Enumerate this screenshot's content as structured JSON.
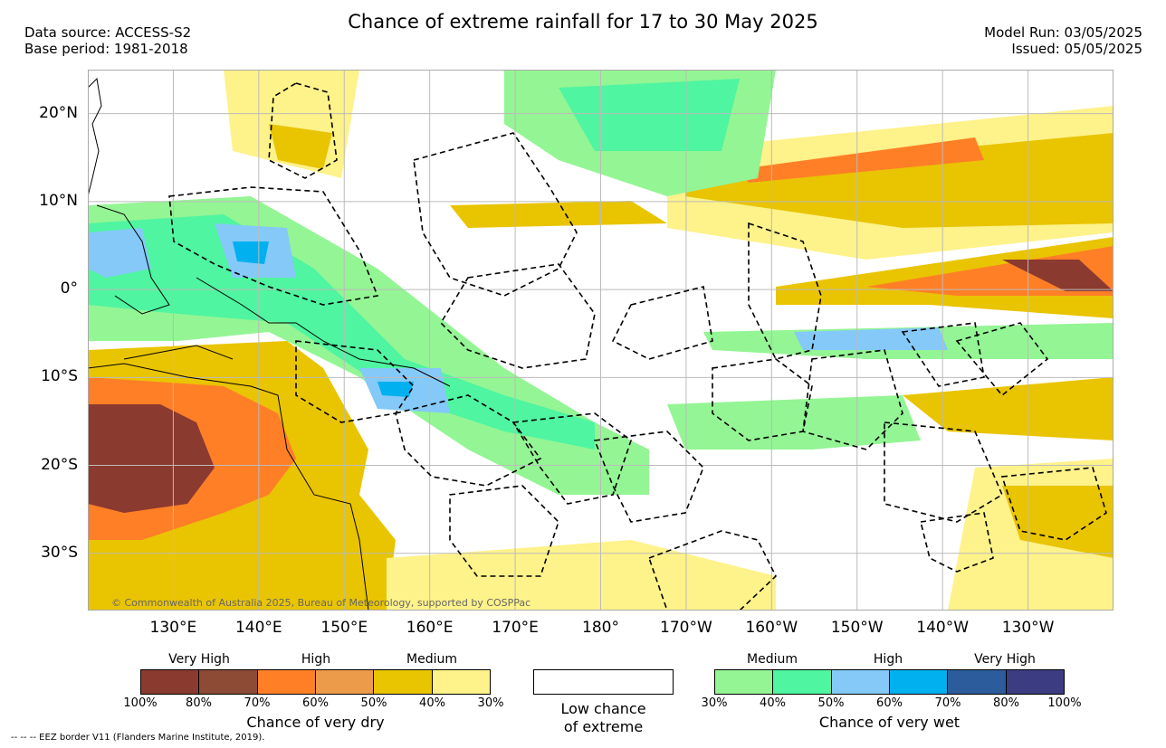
{
  "title": "Chance of extreme rainfall for 17 to 30 May 2025",
  "header_left": [
    "Data source: ACCESS-S2",
    "Base period: 1981-2018"
  ],
  "header_right": [
    "Model Run: 03/05/2025",
    "Issued: 05/05/2025"
  ],
  "lat_labels": [
    {
      "label": "20°N",
      "lat": 20
    },
    {
      "label": "10°N",
      "lat": 10
    },
    {
      "label": "0°",
      "lat": 0
    },
    {
      "label": "10°S",
      "lat": -10
    },
    {
      "label": "20°S",
      "lat": -20
    },
    {
      "label": "30°S",
      "lat": -30
    }
  ],
  "lon_labels": [
    {
      "label": "130°E",
      "lon": 130
    },
    {
      "label": "140°E",
      "lon": 140
    },
    {
      "label": "150°E",
      "lon": 150
    },
    {
      "label": "160°E",
      "lon": 160
    },
    {
      "label": "170°E",
      "lon": 170
    },
    {
      "label": "180°",
      "lon": 180
    },
    {
      "label": "170°W",
      "lon": 190
    },
    {
      "label": "160°W",
      "lon": 200
    },
    {
      "label": "150°W",
      "lon": 210
    },
    {
      "label": "140°W",
      "lon": 220
    },
    {
      "label": "130°W",
      "lon": 230
    }
  ],
  "map_extent": {
    "lon_min": 120,
    "lon_max": 240,
    "lat_min": -36.5,
    "lat_max": 25
  },
  "copyright": "© Commonwealth of Australia 2025, Bureau of Meteorology, supported by COSPPac",
  "dry_legend": {
    "categories": [
      "Very High",
      "High",
      "Medium"
    ],
    "colors": [
      "#8b3a2f",
      "#8d4a35",
      "#ff7f27",
      "#ec9b4a",
      "#e9c400",
      "#fef28a"
    ],
    "ticks": [
      "100%",
      "80%",
      "70%",
      "60%",
      "50%",
      "40%",
      "30%"
    ],
    "label": "Chance of very dry"
  },
  "low_legend": {
    "label_line1": "Low chance",
    "label_line2": "of extreme"
  },
  "wet_legend": {
    "categories": [
      "Medium",
      "High",
      "Very High"
    ],
    "colors": [
      "#94f594",
      "#4ff5a0",
      "#84c9f8",
      "#00b0ef",
      "#2c5c9b",
      "#3c3c82"
    ],
    "ticks": [
      "30%",
      "40%",
      "50%",
      "60%",
      "70%",
      "80%",
      "100%"
    ],
    "label": "Chance of very wet"
  },
  "eez_note": "--  --  -- EEZ border V11 (Flanders Marine Institute, 2019)."
}
